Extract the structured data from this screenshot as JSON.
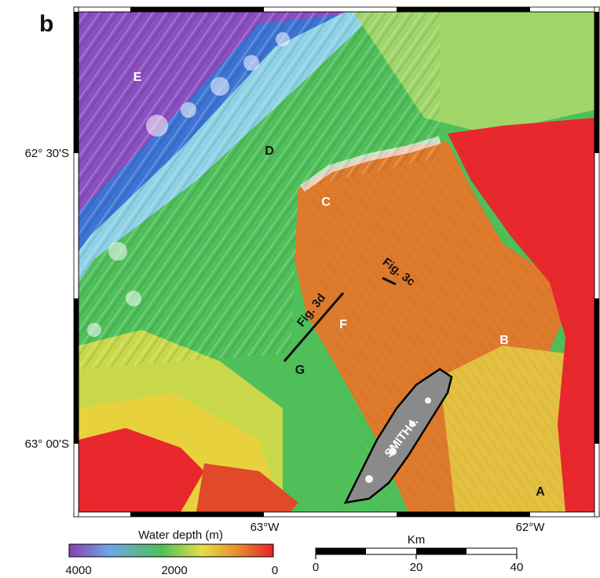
{
  "panel": {
    "letter": "b"
  },
  "latitude_labels": [
    "62° 30'S",
    "63° 00'S"
  ],
  "longitude_labels": [
    "63°W",
    "62°W"
  ],
  "region_labels": [
    {
      "id": "E",
      "text": "E"
    },
    {
      "id": "D",
      "text": "D"
    },
    {
      "id": "C",
      "text": "C"
    },
    {
      "id": "F",
      "text": "F"
    },
    {
      "id": "B",
      "text": "B"
    },
    {
      "id": "G",
      "text": "G"
    },
    {
      "id": "A",
      "text": "A"
    }
  ],
  "island_label": "SMITH I.",
  "profile_labels": {
    "fig3c": "Fig. 3c",
    "fig3d": "Fig. 3d"
  },
  "depth_legend": {
    "title": "Water depth (m)",
    "ticks": [
      "4000",
      "2000",
      "0"
    ],
    "colors": [
      "#8a3fb0",
      "#6fa7e8",
      "#4fbf5a",
      "#e3e04a",
      "#e8902f",
      "#e8202a"
    ]
  },
  "scale_bar": {
    "title": "Km",
    "ticks": [
      "0",
      "20",
      "40"
    ]
  }
}
